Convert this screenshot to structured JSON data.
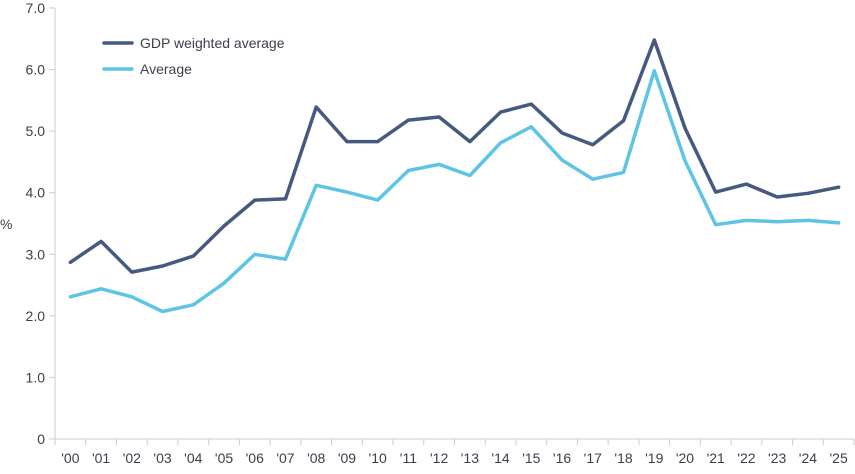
{
  "chart_data": {
    "type": "line",
    "title": "",
    "xlabel": "",
    "ylabel": "%",
    "categories": [
      "'00",
      "'01",
      "'02",
      "'03",
      "'04",
      "'05",
      "'06",
      "'07",
      "'08",
      "'09",
      "'10",
      "'11",
      "'12",
      "'13",
      "'14",
      "'15",
      "'16",
      "'17",
      "'18",
      "'19",
      "'20",
      "'21",
      "'22",
      "'23",
      "'24",
      "'25"
    ],
    "ylim": [
      0,
      7.0
    ],
    "yticks": [
      "0",
      "1.0",
      "2.0",
      "3.0",
      "4.0",
      "5.0",
      "6.0",
      "7.0"
    ],
    "ytick_values": [
      0,
      1,
      2,
      3,
      4,
      5,
      6,
      7
    ],
    "grid": false,
    "legend_position": "top-left",
    "series": [
      {
        "name": "GDP weighted average",
        "color": "#46597f",
        "values": [
          2.87,
          3.21,
          2.71,
          2.81,
          2.97,
          3.46,
          3.88,
          3.9,
          5.39,
          4.83,
          4.83,
          5.18,
          5.23,
          4.83,
          5.31,
          5.44,
          4.97,
          4.78,
          5.17,
          6.48,
          5.05,
          4.01,
          4.14,
          3.93,
          3.99,
          4.09
        ]
      },
      {
        "name": "Average",
        "color": "#5ec4e6",
        "values": [
          2.31,
          2.44,
          2.31,
          2.07,
          2.18,
          2.53,
          3.0,
          2.92,
          4.12,
          4.01,
          3.88,
          4.36,
          4.46,
          4.28,
          4.81,
          5.07,
          4.53,
          4.22,
          4.33,
          5.98,
          4.52,
          3.48,
          3.55,
          3.53,
          3.55,
          3.51
        ]
      }
    ]
  }
}
